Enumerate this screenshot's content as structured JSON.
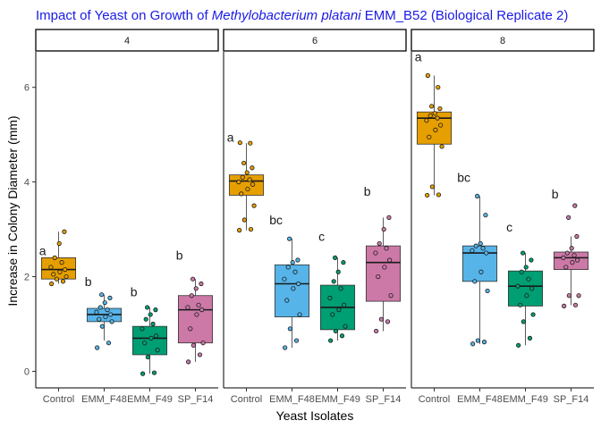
{
  "chart_data": {
    "type": "box",
    "title_parts": {
      "before": "Impact of Yeast on Growth of ",
      "italic": "Methylobacterium platani",
      "after": " EMM_B52 (Biological Replicate 2)"
    },
    "title_color": "#1a1ae6",
    "xlabel": "Yeast Isolates",
    "ylabel": "Increase in Colony Diameter (mm)",
    "ylim": [
      -0.35,
      6.75
    ],
    "yticks": [
      0,
      2,
      4,
      6
    ],
    "grid": false,
    "legend": "none",
    "categories": [
      "Control",
      "EMM_F48",
      "EMM_F49",
      "SP_F14"
    ],
    "colors": {
      "Control": "#E69F00",
      "EMM_F48": "#56B4E9",
      "EMM_F49": "#009E73",
      "SP_F14": "#CC79A7"
    },
    "facets": [
      {
        "label": "4",
        "groups": [
          {
            "category": "Control",
            "letter": "a",
            "letter_y": 2.55,
            "q1": 1.95,
            "median": 2.15,
            "q3": 2.4,
            "whisker_low": 1.85,
            "whisker_high": 2.95,
            "points": [
              1.85,
              1.9,
              1.95,
              2.0,
              2.05,
              2.1,
              2.15,
              2.2,
              2.3,
              2.4,
              2.7,
              2.95
            ]
          },
          {
            "category": "EMM_F48",
            "letter": "b",
            "letter_y": 1.9,
            "q1": 1.05,
            "median": 1.2,
            "q3": 1.33,
            "whisker_low": 0.65,
            "whisker_high": 1.62,
            "points": [
              0.5,
              0.6,
              0.95,
              1.05,
              1.1,
              1.15,
              1.2,
              1.25,
              1.3,
              1.35,
              1.45,
              1.55,
              1.62
            ]
          },
          {
            "category": "EMM_F49",
            "letter": "b",
            "letter_y": 1.68,
            "q1": 0.35,
            "median": 0.7,
            "q3": 0.95,
            "whisker_low": -0.05,
            "whisker_high": 1.35,
            "points": [
              -0.05,
              -0.03,
              0.3,
              0.45,
              0.6,
              0.7,
              0.75,
              0.9,
              1.0,
              1.1,
              1.2,
              1.3,
              1.35
            ]
          },
          {
            "category": "SP_F14",
            "letter": "b",
            "letter_y": 2.45,
            "q1": 0.6,
            "median": 1.3,
            "q3": 1.6,
            "whisker_low": 0.2,
            "whisker_high": 1.95,
            "points": [
              0.2,
              0.35,
              0.55,
              0.6,
              0.9,
              1.2,
              1.3,
              1.35,
              1.4,
              1.6,
              1.75,
              1.85,
              1.95
            ]
          }
        ]
      },
      {
        "label": "6",
        "groups": [
          {
            "category": "Control",
            "letter": "a",
            "letter_y": 4.95,
            "q1": 3.72,
            "median": 4.02,
            "q3": 4.15,
            "whisker_low": 2.98,
            "whisker_high": 4.82,
            "points": [
              2.98,
              3.0,
              3.2,
              3.5,
              3.75,
              3.85,
              3.95,
              4.0,
              4.05,
              4.1,
              4.2,
              4.3,
              4.4,
              4.82,
              4.83
            ]
          },
          {
            "category": "EMM_F48",
            "letter": "bc",
            "letter_y": 3.2,
            "q1": 1.15,
            "median": 1.85,
            "q3": 2.25,
            "whisker_low": 0.5,
            "whisker_high": 2.8,
            "points": [
              0.5,
              0.65,
              0.9,
              1.2,
              1.5,
              1.75,
              1.85,
              1.95,
              2.1,
              2.2,
              2.3,
              2.35,
              2.8
            ]
          },
          {
            "category": "EMM_F49",
            "letter": "c",
            "letter_y": 2.85,
            "q1": 0.88,
            "median": 1.35,
            "q3": 1.82,
            "whisker_low": 0.65,
            "whisker_high": 2.4,
            "points": [
              0.65,
              0.75,
              0.85,
              0.95,
              1.2,
              1.3,
              1.4,
              1.55,
              1.75,
              1.9,
              2.1,
              2.3,
              2.4
            ]
          },
          {
            "category": "SP_F14",
            "letter": "b",
            "letter_y": 3.8,
            "q1": 1.48,
            "median": 2.3,
            "q3": 2.65,
            "whisker_low": 0.85,
            "whisker_high": 3.25,
            "points": [
              0.85,
              1.05,
              1.1,
              1.6,
              2.0,
              2.2,
              2.35,
              2.5,
              2.6,
              2.7,
              3.0,
              3.25
            ]
          }
        ]
      },
      {
        "label": "8",
        "groups": [
          {
            "category": "Control",
            "letter": "a",
            "letter_y": 6.65,
            "q1": 4.8,
            "median": 5.35,
            "q3": 5.48,
            "whisker_low": 3.72,
            "whisker_high": 6.25,
            "points": [
              3.72,
              3.73,
              3.9,
              4.75,
              4.95,
              5.1,
              5.2,
              5.3,
              5.35,
              5.4,
              5.45,
              5.55,
              5.6,
              6.0,
              6.25
            ]
          },
          {
            "category": "EMM_F48",
            "letter": "bc",
            "letter_y": 4.1,
            "q1": 1.9,
            "median": 2.5,
            "q3": 2.65,
            "whisker_low": 0.58,
            "whisker_high": 3.7,
            "points": [
              0.58,
              0.62,
              0.65,
              1.7,
              1.9,
              2.1,
              2.5,
              2.55,
              2.6,
              2.65,
              2.7,
              3.3,
              3.7
            ]
          },
          {
            "category": "EMM_F49",
            "letter": "c",
            "letter_y": 3.05,
            "q1": 1.38,
            "median": 1.8,
            "q3": 2.12,
            "whisker_low": 0.55,
            "whisker_high": 2.5,
            "points": [
              0.55,
              0.7,
              1.05,
              1.2,
              1.4,
              1.6,
              1.75,
              1.8,
              1.95,
              2.1,
              2.2,
              2.35,
              2.5
            ]
          },
          {
            "category": "SP_F14",
            "letter": "b",
            "letter_y": 3.75,
            "q1": 2.15,
            "median": 2.4,
            "q3": 2.52,
            "whisker_low": 1.4,
            "whisker_high": 2.85,
            "points": [
              1.38,
              1.4,
              1.6,
              1.6,
              2.2,
              2.3,
              2.35,
              2.4,
              2.45,
              2.5,
              2.6,
              2.85,
              3.25,
              3.5
            ]
          }
        ]
      }
    ]
  }
}
